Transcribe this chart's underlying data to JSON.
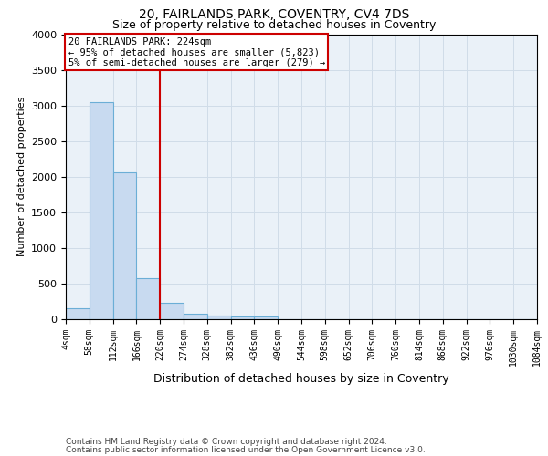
{
  "title": "20, FAIRLANDS PARK, COVENTRY, CV4 7DS",
  "subtitle": "Size of property relative to detached houses in Coventry",
  "xlabel": "Distribution of detached houses by size in Coventry",
  "ylabel": "Number of detached properties",
  "footnote1": "Contains HM Land Registry data © Crown copyright and database right 2024.",
  "footnote2": "Contains public sector information licensed under the Open Government Licence v3.0.",
  "annotation_line1": "20 FAIRLANDS PARK: 224sqm",
  "annotation_line2": "← 95% of detached houses are smaller (5,823)",
  "annotation_line3": "5% of semi-detached houses are larger (279) →",
  "bar_color": "#c8daf0",
  "bar_edge_color": "#6baed6",
  "red_line_color": "#cc0000",
  "annotation_box_edge_color": "#cc0000",
  "bin_edges": [
    4,
    58,
    112,
    166,
    220,
    274,
    328,
    382,
    436,
    490,
    544,
    598,
    652,
    706,
    760,
    814,
    868,
    922,
    976,
    1030,
    1084
  ],
  "bar_heights": [
    150,
    3050,
    2060,
    575,
    230,
    75,
    45,
    40,
    40,
    0,
    0,
    0,
    0,
    0,
    0,
    0,
    0,
    0,
    0,
    0
  ],
  "red_line_x": 220,
  "ylim": [
    0,
    4000
  ],
  "xlim": [
    4,
    1084
  ],
  "tick_labels": [
    "4sqm",
    "58sqm",
    "112sqm",
    "166sqm",
    "220sqm",
    "274sqm",
    "328sqm",
    "382sqm",
    "436sqm",
    "490sqm",
    "544sqm",
    "598sqm",
    "652sqm",
    "706sqm",
    "760sqm",
    "814sqm",
    "868sqm",
    "922sqm",
    "976sqm",
    "1030sqm",
    "1084sqm"
  ],
  "tick_positions": [
    4,
    58,
    112,
    166,
    220,
    274,
    328,
    382,
    436,
    490,
    544,
    598,
    652,
    706,
    760,
    814,
    868,
    922,
    976,
    1030,
    1084
  ],
  "grid_color": "#d0dce8",
  "axes_bg_color": "#eaf1f8",
  "title_fontsize": 10,
  "subtitle_fontsize": 9,
  "ylabel_fontsize": 8,
  "xlabel_fontsize": 9,
  "tick_fontsize": 7,
  "footnote_fontsize": 6.5,
  "annotation_fontsize": 7.5
}
